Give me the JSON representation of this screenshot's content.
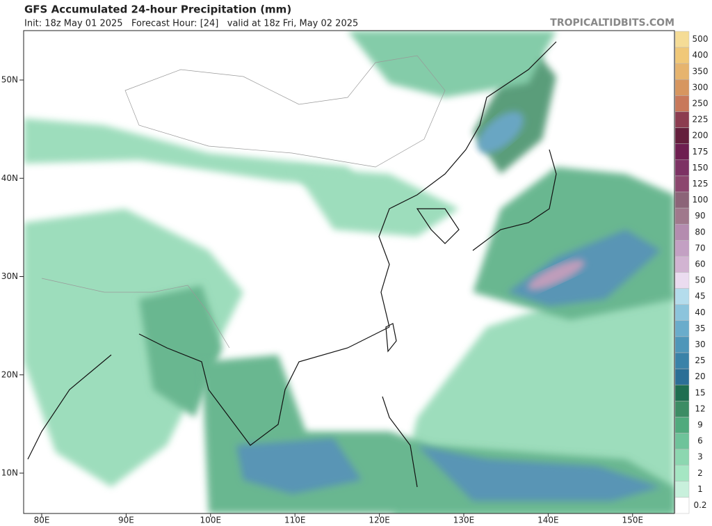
{
  "header": {
    "title": "GFS Accumulated 24-hour Precipitation (mm)",
    "subtitle": "Init: 18z May 01 2025   Forecast Hour: [24]   valid at 18z Fri, May 02 2025",
    "site": "TROPICALTIDBITS.COM"
  },
  "map": {
    "lat_labels": [
      "50N",
      "40N",
      "30N",
      "20N",
      "10N"
    ],
    "lon_labels": [
      "80E",
      "90E",
      "100E",
      "110E",
      "120E",
      "130E",
      "140E",
      "150E"
    ]
  },
  "colorbar": {
    "levels": [
      500,
      400,
      350,
      300,
      250,
      225,
      200,
      175,
      150,
      125,
      100,
      90,
      80,
      70,
      60,
      50,
      45,
      40,
      35,
      30,
      25,
      20,
      15,
      12,
      9,
      6,
      3,
      2,
      1,
      0.2
    ],
    "colors": [
      "#f5dc96",
      "#f0c878",
      "#e6b46e",
      "#d7965f",
      "#c8785a",
      "#8c3c50",
      "#641e3c",
      "#6e1e50",
      "#7d3264",
      "#8c466e",
      "#8c6478",
      "#a0788c",
      "#b48caf",
      "#c3a0c3",
      "#d2b4d2",
      "#ebdcf0",
      "#b4dcec",
      "#8cc4dc",
      "#6aaccb",
      "#4f96b9",
      "#3a82a8",
      "#2b6f96",
      "#1e6e50",
      "#3c8c64",
      "#50aa7d",
      "#6ec39a",
      "#8cd7b0",
      "#a5e6c3",
      "#c8f0dc",
      "#ffffff"
    ]
  }
}
